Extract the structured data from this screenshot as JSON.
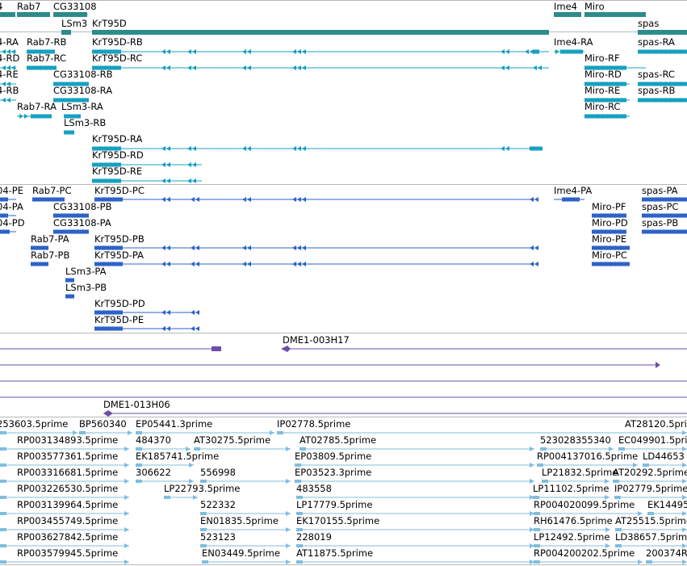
{
  "colors": {
    "gene": "#2e8b8b",
    "transcript_flybase": "#18a0c0",
    "transcript_predicted": "#2d62c8",
    "clone": "#6a4fa8",
    "est": "#7fbde0",
    "separator": "#b8b8b8"
  },
  "gene_track": {
    "labels": [
      "4",
      "Rab7",
      "CG33108",
      "LSm3",
      "KrT95D",
      "Ime4",
      "Miro",
      "spas"
    ]
  },
  "flybase_transcripts": {
    "labels": [
      "4-RA",
      "Rab7-RB",
      "KrT95D-RB",
      "Ime4-RA",
      "spas-RA",
      "4-RD",
      "Rab7-RC",
      "KrT95D-RC",
      "Miro-RF",
      "4-RE",
      "CG33108-RB",
      "Miro-RD",
      "spas-RC",
      "4-RB",
      "CG33108-RA",
      "Miro-RE",
      "spas-RB",
      "Rab7-RA",
      "LSm3-RA",
      "Miro-RC",
      "LSm3-RB",
      "KrT95D-RA",
      "KrT95D-RD",
      "KrT95D-RE"
    ]
  },
  "predicted_transcripts": {
    "labels": [
      "04-PE",
      "Rab7-PC",
      "KrT95D-PC",
      "Ime4-PA",
      "spas-PA",
      "04-PA",
      "CG33108-PB",
      "Miro-PF",
      "spas-PC",
      "04-PD",
      "CG33108-PA",
      "Miro-PD",
      "spas-PB",
      "Rab7-PA",
      "KrT95D-PB",
      "Miro-PE",
      "Rab7-PB",
      "KrT95D-PA",
      "Miro-PC",
      "LSm3-PA",
      "LSm3-PB",
      "KrT95D-PD",
      "KrT95D-PE"
    ]
  },
  "clones": {
    "labels": [
      "DME1-003H17",
      "DME1-013H06"
    ]
  },
  "ests": {
    "labels": [
      "253603.5prime",
      "BP560340",
      "EP05441.3prime",
      "IP02778.5prime",
      "AT28120.5prime",
      "RP003134893.5prime",
      "484370",
      "AT30275.5prime",
      "AT02785.5prime",
      "523028355340",
      "EC049901.5prime",
      "RP003577361.5prime",
      "EK185741.5prime",
      "EP03809.5prime",
      "RP004137016.5prime",
      "LD44653",
      "RP003316681.5prime",
      "306622",
      "556998",
      "EP03523.3prime",
      "LP21832.5prime",
      "AT20292.5prime",
      "RP003226530.5prime",
      "LP22793.5prime",
      "483558",
      "LP11102.5prime",
      "IP02779.5prime",
      "RP003139964.5prime",
      "522332",
      "LP17779.5prime",
      "RP004020099.5prime",
      "EK14495",
      "RP003455749.5prime",
      "EN01835.5prime",
      "EK170155.5prime",
      "RH61476.5prime",
      "AT25515.5prime",
      "RP003627842.5prime",
      "523123",
      "228019",
      "LP12492.5prime",
      "LD38657.5prime",
      "RP003579945.5prime",
      "EN03449.5prime",
      "AT11875.5prime",
      "RP004200202.5prime",
      "200374R"
    ]
  }
}
